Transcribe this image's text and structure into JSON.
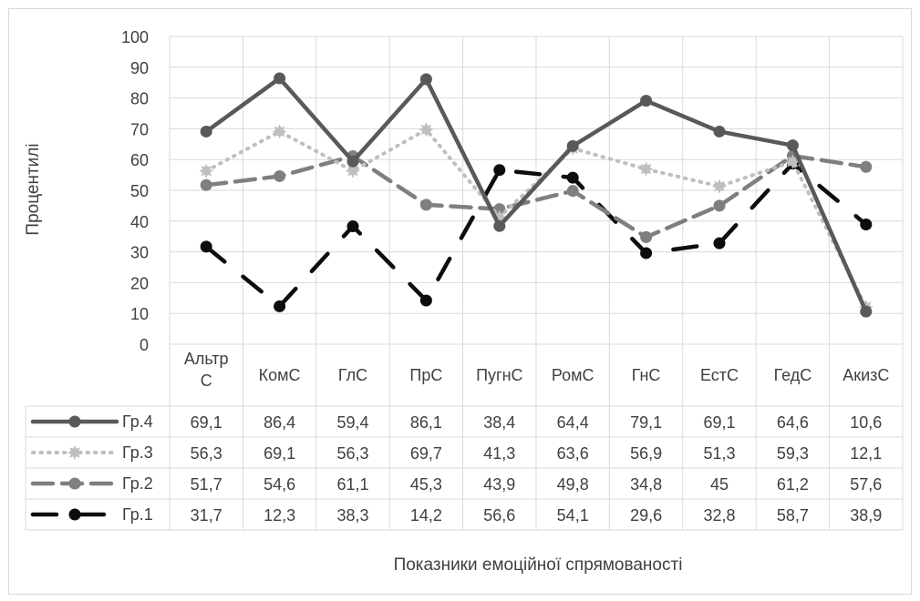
{
  "chart_data": {
    "type": "line",
    "ylabel": "Процентилі",
    "xlabel": "Показники емоційної спрямованості",
    "ylim": [
      0,
      100
    ],
    "yticks": [
      "0",
      "10",
      "20",
      "30",
      "40",
      "50",
      "60",
      "70",
      "80",
      "90",
      "100"
    ],
    "categories": [
      "Альтр С",
      "КомС",
      "ГлС",
      "ПрС",
      "ПугнС",
      "РомС",
      "ГнС",
      "ЕстС",
      "ГедС",
      "АкизС"
    ],
    "grid": true,
    "legend": "data-table",
    "series": [
      {
        "name": "Гр.4",
        "style": "solid",
        "color": "#595959",
        "values": [
          69.1,
          86.4,
          59.4,
          86.1,
          38.4,
          64.4,
          79.1,
          69.1,
          64.6,
          10.6
        ],
        "labels": [
          "69,1",
          "86,4",
          "59,4",
          "86,1",
          "38,4",
          "64,4",
          "79,1",
          "69,1",
          "64,6",
          "10,6"
        ]
      },
      {
        "name": "Гр.3",
        "style": "dotted",
        "color": "#bfbfbf",
        "values": [
          56.3,
          69.1,
          56.3,
          69.7,
          41.3,
          63.6,
          56.9,
          51.3,
          59.3,
          12.1
        ],
        "labels": [
          "56,3",
          "69,1",
          "56,3",
          "69,7",
          "41,3",
          "63,6",
          "56,9",
          "51,3",
          "59,3",
          "12,1"
        ]
      },
      {
        "name": "Гр.2",
        "style": "dashed",
        "color": "#7f7f7f",
        "values": [
          51.7,
          54.6,
          61.1,
          45.3,
          43.9,
          49.8,
          34.8,
          45,
          61.2,
          57.6
        ],
        "labels": [
          "51,7",
          "54,6",
          "61,1",
          "45,3",
          "43,9",
          "49,8",
          "34,8",
          "45",
          "61,2",
          "57,6"
        ]
      },
      {
        "name": "Гр.1",
        "style": "longdash",
        "color": "#0d0d0d",
        "values": [
          31.7,
          12.3,
          38.3,
          14.2,
          56.6,
          54.1,
          29.6,
          32.8,
          58.7,
          38.9
        ],
        "labels": [
          "31,7",
          "12,3",
          "38,3",
          "14,2",
          "56,6",
          "54,1",
          "29,6",
          "32,8",
          "58,7",
          "38,9"
        ]
      }
    ]
  }
}
